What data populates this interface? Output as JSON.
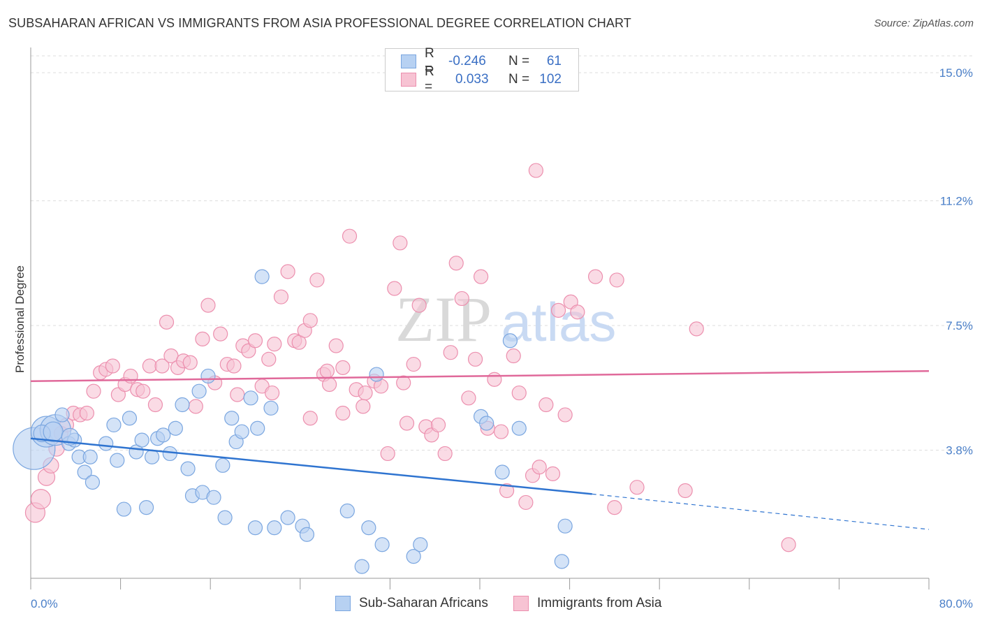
{
  "header": {
    "title": "SUBSAHARAN AFRICAN VS IMMIGRANTS FROM ASIA PROFESSIONAL DEGREE CORRELATION CHART",
    "source": "Source: ZipAtlas.com"
  },
  "watermark": {
    "zip": "ZIP",
    "atlas": "atlas"
  },
  "legend": {
    "series1": {
      "r_label": "R =",
      "r_value": "-0.246",
      "n_label": "N =",
      "n_value": "61"
    },
    "series2": {
      "r_label": "R =",
      "r_value": "0.033",
      "n_label": "N =",
      "n_value": "102"
    }
  },
  "colors": {
    "blue_fill": "#b7d1f2",
    "blue_stroke": "#7aa6e0",
    "blue_line": "#2f74d0",
    "pink_fill": "#f7c3d3",
    "pink_stroke": "#ec8fae",
    "pink_line": "#e0699a",
    "tick_text": "#4a7fc8"
  },
  "chart_data": {
    "type": "scatter",
    "title": "SUBSAHARAN AFRICAN VS IMMIGRANTS FROM ASIA PROFESSIONAL DEGREE CORRELATION CHART",
    "ylabel": "Professional Degree",
    "xlabel": "",
    "xlim": [
      0,
      80
    ],
    "ylim": [
      0,
      15.5
    ],
    "x_tick_labels": {
      "left": "0.0%",
      "right": "80.0%"
    },
    "y_ticks": [
      {
        "value": 3.8,
        "label": "3.8%"
      },
      {
        "value": 7.5,
        "label": "7.5%"
      },
      {
        "value": 11.2,
        "label": "11.2%"
      },
      {
        "value": 15.0,
        "label": "15.0%"
      }
    ],
    "grid": true,
    "legend_position": "top-center",
    "series": [
      {
        "name": "Sub-Saharan Africans",
        "color": "#b7d1f2",
        "trend": {
          "x": [
            0,
            50
          ],
          "y": [
            4.15,
            2.5
          ],
          "dashed_to": [
            80,
            1.45
          ]
        },
        "points": [
          [
            0.3,
            3.85
          ],
          [
            1.4,
            4.35
          ],
          [
            2.2,
            4.4
          ],
          [
            2.8,
            4.85
          ],
          [
            3.4,
            4.0
          ],
          [
            3.9,
            4.1
          ],
          [
            4.3,
            3.6
          ],
          [
            5.3,
            3.6
          ],
          [
            4.8,
            3.15
          ],
          [
            5.5,
            2.85
          ],
          [
            6.7,
            4.0
          ],
          [
            7.4,
            4.55
          ],
          [
            7.7,
            3.5
          ],
          [
            8.3,
            2.05
          ],
          [
            8.8,
            4.75
          ],
          [
            9.4,
            3.75
          ],
          [
            9.9,
            4.1
          ],
          [
            10.3,
            2.1
          ],
          [
            10.8,
            3.6
          ],
          [
            11.3,
            4.15
          ],
          [
            11.8,
            4.25
          ],
          [
            12.4,
            3.7
          ],
          [
            12.9,
            4.45
          ],
          [
            13.5,
            5.15
          ],
          [
            14.0,
            3.25
          ],
          [
            14.4,
            2.45
          ],
          [
            15.0,
            5.55
          ],
          [
            15.3,
            2.55
          ],
          [
            15.8,
            6.0
          ],
          [
            16.3,
            2.4
          ],
          [
            17.1,
            3.35
          ],
          [
            17.3,
            1.8
          ],
          [
            17.9,
            4.75
          ],
          [
            18.3,
            4.05
          ],
          [
            18.8,
            4.35
          ],
          [
            19.6,
            5.35
          ],
          [
            20.0,
            1.5
          ],
          [
            20.2,
            4.45
          ],
          [
            20.6,
            8.95
          ],
          [
            21.4,
            5.05
          ],
          [
            21.7,
            1.5
          ],
          [
            22.9,
            1.8
          ],
          [
            24.2,
            1.55
          ],
          [
            24.6,
            1.3
          ],
          [
            28.2,
            2.0
          ],
          [
            29.5,
            0.35
          ],
          [
            30.1,
            1.5
          ],
          [
            31.3,
            1.0
          ],
          [
            30.8,
            6.05
          ],
          [
            34.1,
            0.65
          ],
          [
            34.7,
            1.0
          ],
          [
            40.1,
            4.8
          ],
          [
            40.6,
            4.6
          ],
          [
            42.0,
            3.15
          ],
          [
            42.7,
            7.05
          ],
          [
            43.5,
            4.45
          ],
          [
            47.6,
            1.55
          ],
          [
            47.3,
            0.5
          ],
          [
            1.0,
            4.3
          ],
          [
            2.0,
            4.35
          ],
          [
            3.5,
            4.2
          ]
        ],
        "sizes": [
          30,
          22,
          22,
          10,
          10,
          10,
          10,
          10,
          10,
          10,
          10,
          10,
          10,
          10,
          10,
          10,
          10,
          10,
          10,
          10,
          10,
          10,
          10,
          10,
          10,
          10,
          10,
          10,
          10,
          10,
          10,
          10,
          10,
          10,
          10,
          10,
          10,
          10,
          10,
          10,
          10,
          10,
          10,
          10,
          10,
          10,
          10,
          10,
          10,
          10,
          10,
          10,
          10,
          10,
          10,
          10,
          10,
          10,
          12,
          14,
          12
        ]
      },
      {
        "name": "Immigrants from Asia",
        "color": "#f7c3d3",
        "trend": {
          "x": [
            0,
            80
          ],
          "y": [
            5.85,
            6.15
          ]
        },
        "points": [
          [
            0.4,
            1.95
          ],
          [
            0.9,
            2.35
          ],
          [
            1.4,
            3.0
          ],
          [
            1.8,
            3.35
          ],
          [
            2.3,
            3.85
          ],
          [
            2.7,
            4.3
          ],
          [
            3.2,
            4.55
          ],
          [
            3.8,
            4.9
          ],
          [
            4.4,
            4.85
          ],
          [
            5.0,
            4.9
          ],
          [
            5.6,
            5.55
          ],
          [
            6.2,
            6.1
          ],
          [
            6.7,
            6.2
          ],
          [
            7.3,
            6.3
          ],
          [
            7.8,
            5.45
          ],
          [
            8.4,
            5.75
          ],
          [
            8.9,
            6.0
          ],
          [
            9.5,
            5.6
          ],
          [
            10.0,
            5.55
          ],
          [
            10.6,
            6.3
          ],
          [
            11.1,
            5.15
          ],
          [
            11.7,
            6.3
          ],
          [
            12.1,
            7.6
          ],
          [
            12.5,
            6.6
          ],
          [
            13.1,
            6.25
          ],
          [
            13.6,
            6.45
          ],
          [
            14.2,
            6.4
          ],
          [
            14.7,
            5.1
          ],
          [
            15.3,
            7.1
          ],
          [
            15.8,
            8.1
          ],
          [
            16.4,
            5.8
          ],
          [
            16.9,
            7.25
          ],
          [
            17.5,
            6.35
          ],
          [
            18.1,
            6.3
          ],
          [
            18.4,
            5.45
          ],
          [
            18.9,
            6.9
          ],
          [
            19.4,
            6.75
          ],
          [
            20.0,
            7.05
          ],
          [
            20.6,
            5.7
          ],
          [
            21.2,
            6.5
          ],
          [
            21.7,
            6.95
          ],
          [
            22.3,
            8.35
          ],
          [
            22.9,
            9.1
          ],
          [
            23.5,
            7.05
          ],
          [
            23.9,
            7.0
          ],
          [
            24.4,
            7.35
          ],
          [
            24.9,
            7.65
          ],
          [
            25.5,
            8.85
          ],
          [
            26.1,
            6.05
          ],
          [
            26.6,
            5.75
          ],
          [
            27.2,
            6.9
          ],
          [
            27.8,
            6.25
          ],
          [
            28.4,
            10.15
          ],
          [
            29.0,
            5.6
          ],
          [
            29.6,
            5.1
          ],
          [
            29.8,
            5.5
          ],
          [
            30.6,
            5.85
          ],
          [
            31.2,
            5.7
          ],
          [
            31.8,
            3.7
          ],
          [
            32.4,
            8.6
          ],
          [
            32.9,
            9.95
          ],
          [
            33.5,
            4.6
          ],
          [
            34.1,
            6.35
          ],
          [
            34.6,
            8.1
          ],
          [
            35.2,
            4.5
          ],
          [
            35.7,
            4.25
          ],
          [
            36.3,
            4.55
          ],
          [
            36.9,
            3.7
          ],
          [
            37.4,
            6.7
          ],
          [
            37.9,
            9.35
          ],
          [
            38.4,
            8.3
          ],
          [
            39.0,
            5.35
          ],
          [
            39.6,
            6.5
          ],
          [
            40.1,
            8.95
          ],
          [
            40.7,
            4.45
          ],
          [
            41.3,
            5.9
          ],
          [
            41.9,
            4.35
          ],
          [
            42.4,
            2.6
          ],
          [
            43.0,
            6.6
          ],
          [
            43.5,
            5.5
          ],
          [
            44.1,
            2.25
          ],
          [
            44.7,
            3.05
          ],
          [
            45.3,
            3.3
          ],
          [
            45.9,
            5.15
          ],
          [
            46.5,
            3.1
          ],
          [
            47.0,
            7.95
          ],
          [
            47.6,
            4.85
          ],
          [
            48.1,
            8.2
          ],
          [
            48.7,
            7.9
          ],
          [
            50.3,
            8.95
          ],
          [
            52.0,
            2.1
          ],
          [
            52.2,
            8.85
          ],
          [
            54.0,
            2.7
          ],
          [
            58.3,
            2.6
          ],
          [
            59.3,
            7.4
          ],
          [
            67.5,
            1.0
          ],
          [
            45.0,
            12.1
          ],
          [
            27.8,
            4.9
          ],
          [
            21.5,
            5.5
          ],
          [
            33.2,
            5.8
          ],
          [
            26.4,
            6.15
          ],
          [
            24.9,
            4.75
          ]
        ],
        "sizes": [
          14,
          14,
          12,
          11,
          11,
          10,
          10,
          10,
          10,
          10,
          10,
          10,
          10,
          10,
          10,
          10,
          10,
          10,
          10,
          10,
          10,
          10,
          10,
          10,
          10,
          10,
          10,
          10,
          10,
          10,
          10,
          10,
          10,
          10,
          10,
          10,
          10,
          10,
          10,
          10,
          10,
          10,
          10,
          10,
          10,
          10,
          10,
          10,
          10,
          10,
          10,
          10,
          10,
          10,
          10,
          10,
          10,
          10,
          10,
          10,
          10,
          10,
          10,
          10,
          10,
          10,
          10,
          10,
          10,
          10,
          10,
          10,
          10,
          10,
          10,
          10,
          10,
          10,
          10,
          10,
          10,
          10,
          10,
          10,
          10,
          10,
          10,
          10,
          10,
          10,
          10,
          10,
          10,
          10,
          10,
          10,
          10,
          10,
          10,
          10,
          10,
          10
        ]
      }
    ]
  }
}
